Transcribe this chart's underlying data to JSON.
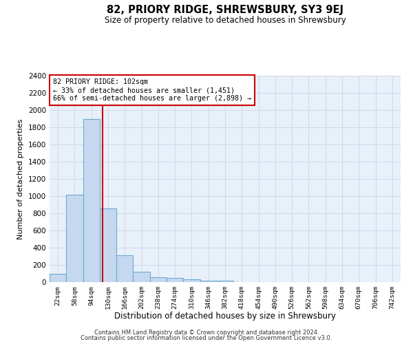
{
  "title": "82, PRIORY RIDGE, SHREWSBURY, SY3 9EJ",
  "subtitle": "Size of property relative to detached houses in Shrewsbury",
  "xlabel": "Distribution of detached houses by size in Shrewsbury",
  "ylabel": "Number of detached properties",
  "bar_color": "#c5d8f0",
  "bar_edge_color": "#6aaad4",
  "background_color": "#e8f0fa",
  "grid_color": "#d0d8e8",
  "categories": [
    "22sqm",
    "58sqm",
    "94sqm",
    "130sqm",
    "166sqm",
    "202sqm",
    "238sqm",
    "274sqm",
    "310sqm",
    "346sqm",
    "382sqm",
    "418sqm",
    "454sqm",
    "490sqm",
    "526sqm",
    "562sqm",
    "598sqm",
    "634sqm",
    "670sqm",
    "706sqm",
    "742sqm"
  ],
  "values": [
    95,
    1020,
    1900,
    855,
    315,
    120,
    60,
    50,
    30,
    20,
    15,
    0,
    0,
    0,
    0,
    0,
    0,
    0,
    0,
    0,
    0
  ],
  "property_label": "82 PRIORY RIDGE: 102sqm",
  "pct_smaller": "33% of detached houses are smaller (1,451)",
  "pct_larger": "66% of semi-detached houses are larger (2,898)",
  "vline_x": 2.67,
  "ylim": [
    0,
    2400
  ],
  "yticks": [
    0,
    200,
    400,
    600,
    800,
    1000,
    1200,
    1400,
    1600,
    1800,
    2000,
    2200,
    2400
  ],
  "footnote1": "Contains HM Land Registry data © Crown copyright and database right 2024.",
  "footnote2": "Contains public sector information licensed under the Open Government Licence v3.0.",
  "annotation_box_color": "#cc0000",
  "vline_color": "#cc0000"
}
